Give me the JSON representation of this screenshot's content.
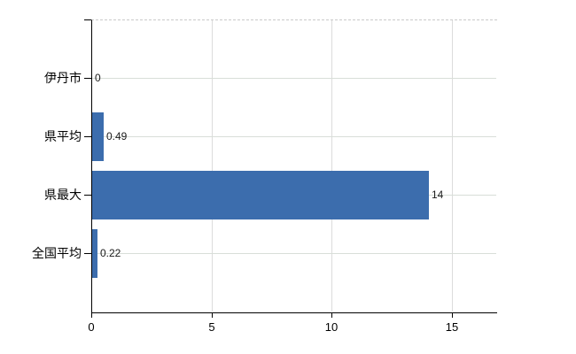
{
  "chart_data": {
    "type": "bar",
    "orientation": "horizontal",
    "title": "",
    "xlabel": "",
    "ylabel": "",
    "categories": [
      "伊丹市",
      "県平均",
      "県最大",
      "全国平均"
    ],
    "values": [
      0,
      0.49,
      14,
      0.22
    ],
    "value_labels": [
      "0",
      "0.49",
      "14",
      "0.22"
    ],
    "x_ticks": [
      0,
      5,
      10,
      15
    ],
    "x_tick_labels": [
      "0",
      "5",
      "10",
      "15"
    ],
    "xlim": [
      0,
      16.85
    ],
    "grid": "on",
    "legend": "none",
    "colors": {
      "bar": "#3c6dad",
      "v_grid": "#dcdcdc",
      "h_grid": "#d8ded8",
      "axis": "#000000",
      "top_border": "#c9c9c9",
      "text": "#000000",
      "value_text": "#1a1a1a",
      "background": "#ffffff"
    }
  }
}
